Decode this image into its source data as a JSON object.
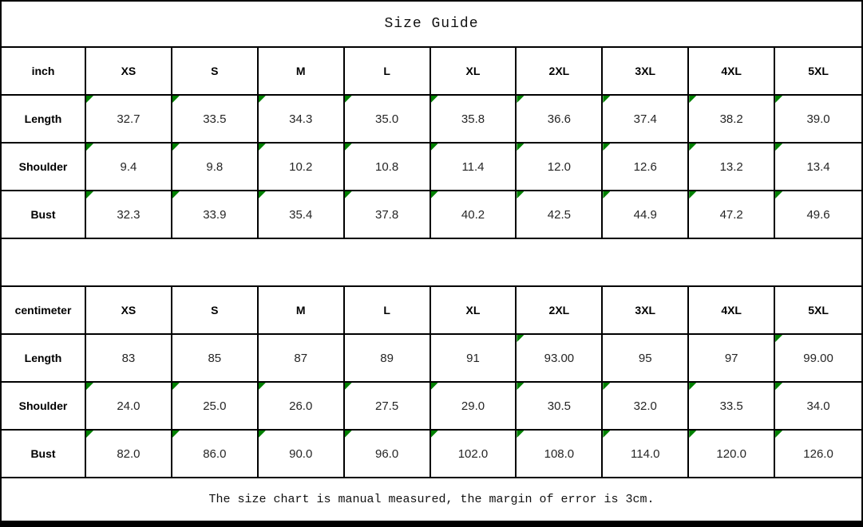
{
  "title": "Size Guide",
  "footer_note": "The size chart is manual measured, the margin of error is 3cm.",
  "colors": {
    "marker_green": "#008000",
    "border": "#000000",
    "background": "#ffffff",
    "bottom_bar": "#000000"
  },
  "tables": [
    {
      "unit_label": "inch",
      "sizes": [
        "XS",
        "S",
        "M",
        "L",
        "XL",
        "2XL",
        "3XL",
        "4XL",
        "5XL"
      ],
      "rows": [
        {
          "label": "Length",
          "values": [
            "32.7",
            "33.5",
            "34.3",
            "35.0",
            "35.8",
            "36.6",
            "37.4",
            "38.2",
            "39.0"
          ],
          "markers": [
            true,
            true,
            true,
            true,
            true,
            true,
            true,
            true,
            true
          ]
        },
        {
          "label": "Shoulder",
          "values": [
            "9.4",
            "9.8",
            "10.2",
            "10.8",
            "11.4",
            "12.0",
            "12.6",
            "13.2",
            "13.4"
          ],
          "markers": [
            true,
            true,
            true,
            true,
            true,
            true,
            true,
            true,
            true
          ]
        },
        {
          "label": "Bust",
          "values": [
            "32.3",
            "33.9",
            "35.4",
            "37.8",
            "40.2",
            "42.5",
            "44.9",
            "47.2",
            "49.6"
          ],
          "markers": [
            true,
            true,
            true,
            true,
            true,
            true,
            true,
            true,
            true
          ]
        }
      ]
    },
    {
      "unit_label": "centimeter",
      "sizes": [
        "XS",
        "S",
        "M",
        "L",
        "XL",
        "2XL",
        "3XL",
        "4XL",
        "5XL"
      ],
      "rows": [
        {
          "label": "Length",
          "values": [
            "83",
            "85",
            "87",
            "89",
            "91",
            "93.00",
            "95",
            "97",
            "99.00"
          ],
          "markers": [
            false,
            false,
            false,
            false,
            false,
            true,
            false,
            false,
            true
          ]
        },
        {
          "label": "Shoulder",
          "values": [
            "24.0",
            "25.0",
            "26.0",
            "27.5",
            "29.0",
            "30.5",
            "32.0",
            "33.5",
            "34.0"
          ],
          "markers": [
            true,
            true,
            true,
            true,
            true,
            true,
            true,
            true,
            true
          ]
        },
        {
          "label": "Bust",
          "values": [
            "82.0",
            "86.0",
            "90.0",
            "96.0",
            "102.0",
            "108.0",
            "114.0",
            "120.0",
            "126.0"
          ],
          "markers": [
            true,
            true,
            true,
            true,
            true,
            true,
            true,
            true,
            true
          ]
        }
      ]
    }
  ]
}
